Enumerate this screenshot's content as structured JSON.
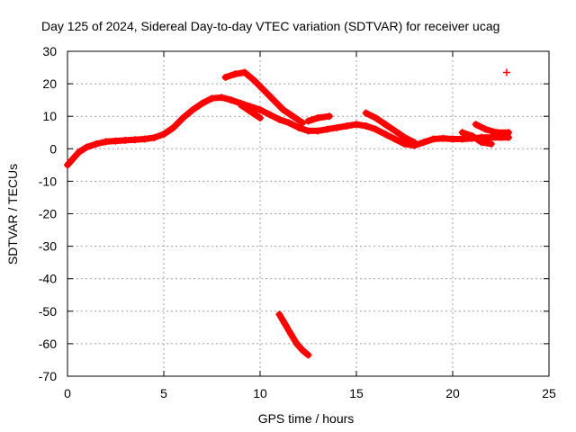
{
  "chart_data": {
    "type": "scatter",
    "title": "Day 125 of 2024, Sidereal Day-to-day VTEC variation (SDTVAR) for receiver ucag",
    "xlabel": "GPS time / hours",
    "ylabel": "SDTVAR / TECUs",
    "xlim": [
      0,
      25
    ],
    "ylim": [
      -70,
      30
    ],
    "xticks": [
      0,
      5,
      10,
      15,
      20,
      25
    ],
    "yticks": [
      -70,
      -60,
      -50,
      -40,
      -30,
      -20,
      -10,
      0,
      10,
      20,
      30
    ],
    "grid": true,
    "series_color": "#ff0000",
    "series": [
      {
        "name": "main-trace",
        "points": [
          [
            0.0,
            -5
          ],
          [
            0.3,
            -3
          ],
          [
            0.6,
            -1
          ],
          [
            1.0,
            0.5
          ],
          [
            1.5,
            1.5
          ],
          [
            2.0,
            2.2
          ],
          [
            2.5,
            2.4
          ],
          [
            3.0,
            2.6
          ],
          [
            3.5,
            2.8
          ],
          [
            4.0,
            3.0
          ],
          [
            4.5,
            3.4
          ],
          [
            5.0,
            4.5
          ],
          [
            5.5,
            6.5
          ],
          [
            6.0,
            9.5
          ],
          [
            6.5,
            12.0
          ],
          [
            7.0,
            14.0
          ],
          [
            7.5,
            15.5
          ],
          [
            8.0,
            15.8
          ],
          [
            8.5,
            15.0
          ],
          [
            9.0,
            14.0
          ],
          [
            9.5,
            13.0
          ],
          [
            10.0,
            12.0
          ],
          [
            10.5,
            10.5
          ],
          [
            11.0,
            9.0
          ],
          [
            11.5,
            8.0
          ],
          [
            12.0,
            6.5
          ],
          [
            12.5,
            5.5
          ],
          [
            13.0,
            5.5
          ],
          [
            13.5,
            6.0
          ],
          [
            14.0,
            6.5
          ],
          [
            14.5,
            7.0
          ],
          [
            15.0,
            7.5
          ],
          [
            15.5,
            7.0
          ],
          [
            16.0,
            6.0
          ],
          [
            16.5,
            4.5
          ],
          [
            17.0,
            3.0
          ],
          [
            17.5,
            1.5
          ],
          [
            18.0,
            1.0
          ],
          [
            18.5,
            2.0
          ],
          [
            19.0,
            3.0
          ],
          [
            19.5,
            3.2
          ],
          [
            20.0,
            3.0
          ],
          [
            20.5,
            3.0
          ],
          [
            21.0,
            3.2
          ],
          [
            21.5,
            3.5
          ],
          [
            22.0,
            3.5
          ],
          [
            22.5,
            3.5
          ],
          [
            22.9,
            3.5
          ]
        ]
      },
      {
        "name": "upper-arc",
        "points": [
          [
            8.2,
            22
          ],
          [
            8.7,
            23
          ],
          [
            9.2,
            23.5
          ],
          [
            9.7,
            21
          ],
          [
            10.2,
            18
          ],
          [
            10.7,
            15
          ],
          [
            11.2,
            12
          ],
          [
            11.7,
            10
          ],
          [
            12.2,
            8
          ]
        ]
      },
      {
        "name": "branch-a",
        "points": [
          [
            9.0,
            13.5
          ],
          [
            9.5,
            11.5
          ],
          [
            10.0,
            9.5
          ]
        ]
      },
      {
        "name": "branch-b",
        "points": [
          [
            12.5,
            8.5
          ],
          [
            13.0,
            9.5
          ],
          [
            13.6,
            10.0
          ]
        ]
      },
      {
        "name": "branch-c",
        "points": [
          [
            15.5,
            11.0
          ],
          [
            16.0,
            9.5
          ],
          [
            16.5,
            7.5
          ],
          [
            17.0,
            5.5
          ],
          [
            17.5,
            3.5
          ],
          [
            18.0,
            2.0
          ]
        ]
      },
      {
        "name": "branch-d",
        "points": [
          [
            20.5,
            5.0
          ],
          [
            21.0,
            4.0
          ],
          [
            21.5,
            2.0
          ],
          [
            22.0,
            1.5
          ]
        ]
      },
      {
        "name": "branch-e",
        "points": [
          [
            21.2,
            7.5
          ],
          [
            21.7,
            6.0
          ],
          [
            22.3,
            5.0
          ],
          [
            22.9,
            5.0
          ]
        ]
      },
      {
        "name": "lower-arc",
        "points": [
          [
            11.0,
            -51
          ],
          [
            11.3,
            -54
          ],
          [
            11.6,
            -57
          ],
          [
            11.9,
            -60
          ],
          [
            12.2,
            -62
          ],
          [
            12.5,
            -63.5
          ]
        ]
      },
      {
        "name": "outlier",
        "points": [
          [
            22.8,
            23.5
          ]
        ]
      }
    ]
  }
}
